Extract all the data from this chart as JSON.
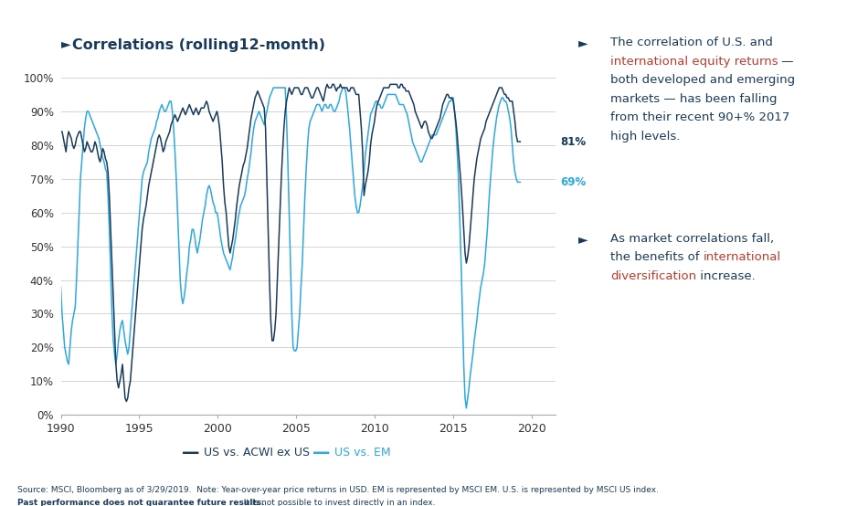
{
  "title": "Correlations (rolling12-month)",
  "title_color": "#1a3a5c",
  "title_fontsize": 12,
  "background_color": "#ffffff",
  "plot_bg_color": "#ffffff",
  "line1_color": "#1a3a5c",
  "line2_color": "#2ea8e0",
  "line1_label": "US vs. ACWI ex US",
  "line2_label": "US vs. EM",
  "end_label1": "81%",
  "end_label2": "69%",
  "end_label1_color": "#1a3a5c",
  "end_label2_color": "#2ea8e0",
  "ylim": [
    0,
    1.05
  ],
  "yticks": [
    0.0,
    0.1,
    0.2,
    0.3,
    0.4,
    0.5,
    0.6,
    0.7,
    0.8,
    0.9,
    1.0
  ],
  "ytick_labels": [
    "0%",
    "10%",
    "20%",
    "30%",
    "40%",
    "50%",
    "60%",
    "70%",
    "80%",
    "90%",
    "100%"
  ],
  "xlim_start": 1990.0,
  "xlim_end": 2021.5,
  "xticks": [
    1990,
    1995,
    2000,
    2005,
    2010,
    2015,
    2020
  ],
  "grid_color": "#cccccc",
  "dark_navy": "#1a3a5c",
  "light_blue": "#2ea8e0",
  "red_color": "#c0392b",
  "source_normal": "Source: MSCI, Bloomberg as of 3/29/2019.  Note: Year-over-year price returns in USD. EM is represented by MSCI EM. U.S. is represented by MSCI US index.  ",
  "source_bold": "Past performance does not\nguarantee future results.",
  "source_end": "  It is not possible to invest directly in an index."
}
